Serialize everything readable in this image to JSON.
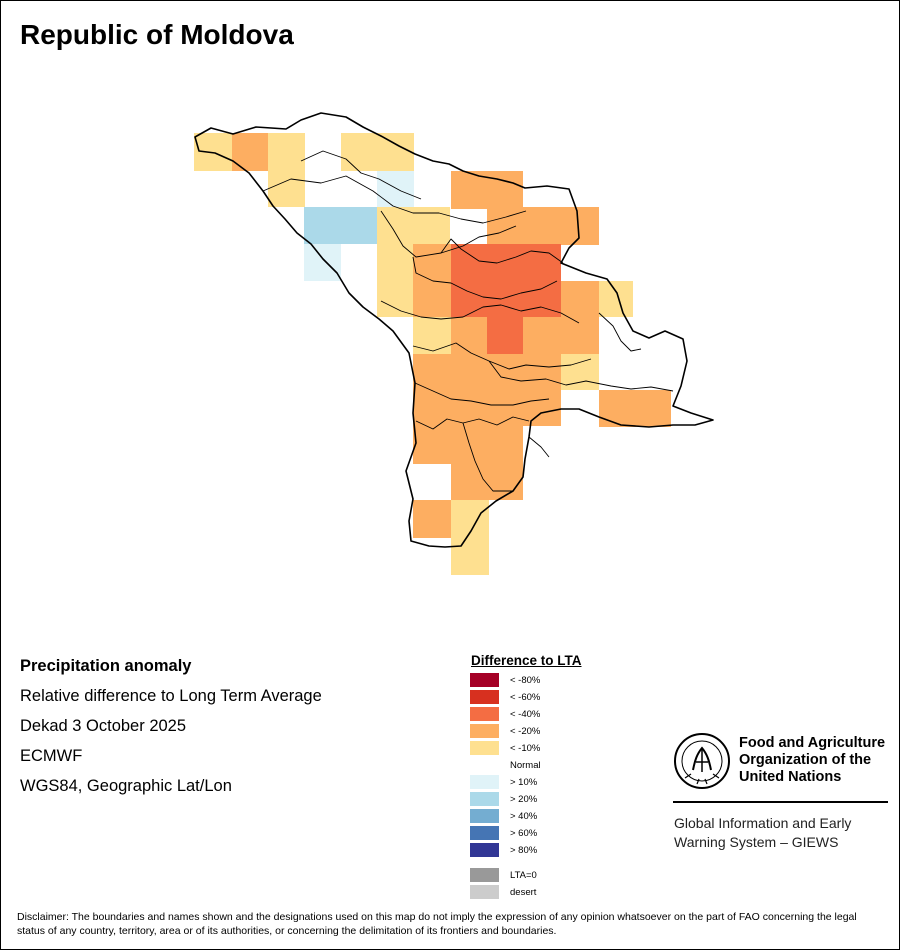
{
  "title": "Republic of Moldova",
  "info": {
    "product": "Precipitation anomaly",
    "description": "Relative difference to Long Term Average",
    "period": "Dekad 3 October 2025",
    "source": "ECMWF",
    "projection": "WGS84, Geographic Lat/Lon"
  },
  "legend": {
    "title": "Difference to LTA",
    "items": [
      {
        "label": "< -80%",
        "color": "#a50026"
      },
      {
        "label": "< -60%",
        "color": "#d7301f"
      },
      {
        "label": "< -40%",
        "color": "#f46d43"
      },
      {
        "label": "< -20%",
        "color": "#fdae61"
      },
      {
        "label": "< -10%",
        "color": "#fee090"
      },
      {
        "label": "Normal",
        "color": "#ffffff"
      },
      {
        "label": "> 10%",
        "color": "#e0f3f8"
      },
      {
        "label": "> 20%",
        "color": "#abd9e9"
      },
      {
        "label": "> 40%",
        "color": "#74add1"
      },
      {
        "label": "> 60%",
        "color": "#4575b4"
      },
      {
        "label": "> 80%",
        "color": "#313695"
      },
      {
        "label": "LTA=0",
        "color": "#999999",
        "gap": true
      },
      {
        "label": "desert",
        "color": "#cccccc"
      }
    ]
  },
  "grid_classes": {
    "orange": "#fdae61",
    "red": "#f46d43",
    "yellow": "#fee090",
    "lightblue": "#e0f3f8",
    "blue": "#abd9e9"
  },
  "org": {
    "line1": "Food and Agriculture",
    "line2": "Organization of the",
    "line3": "United Nations",
    "giews_line1": "Global Information and Early",
    "giews_line2": "Warning System – GIEWS"
  },
  "disclaimer": "Disclaimer: The boundaries and names shown and the designations used on this map do not imply the expression of any opinion whatsoever on the part of FAO concerning the legal status of any country, territory, area or of its authorities, or concerning the delimitation of its frontiers and boundaries."
}
